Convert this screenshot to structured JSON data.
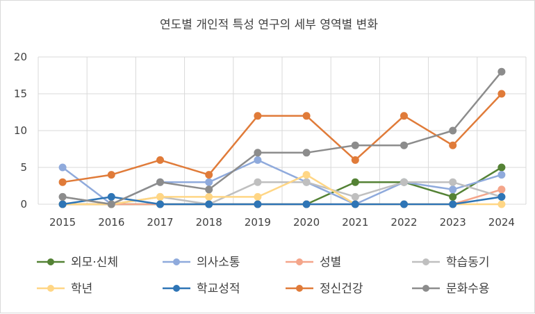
{
  "chart_data": {
    "type": "line",
    "title": "연도별 개인적 특성 연구의 세부 영역별  변화",
    "xlabel": "",
    "ylabel": "",
    "categories": [
      "2015",
      "2016",
      "2017",
      "2018",
      "2019",
      "2020",
      "2021",
      "2022",
      "2023",
      "2024"
    ],
    "ylim": [
      0,
      20
    ],
    "yticks": [
      0,
      5,
      10,
      15,
      20
    ],
    "grid": "both",
    "legend_position": "bottom",
    "series": [
      {
        "name": "외모·신체",
        "color": "#548235",
        "values": [
          0,
          0,
          0,
          0,
          0,
          0,
          3,
          3,
          1,
          5
        ]
      },
      {
        "name": "의사소통",
        "color": "#8faadc",
        "values": [
          5,
          0,
          3,
          3,
          6,
          3,
          0,
          3,
          2,
          4
        ]
      },
      {
        "name": "성별",
        "color": "#f4a58a",
        "values": [
          0,
          0,
          0,
          0,
          0,
          0,
          0,
          0,
          0,
          2
        ]
      },
      {
        "name": "학습동기",
        "color": "#bfbfbf",
        "values": [
          1,
          0,
          1,
          0,
          3,
          3,
          1,
          3,
          3,
          1
        ]
      },
      {
        "name": "학년",
        "color": "#ffd685",
        "values": [
          0,
          0,
          1,
          1,
          1,
          4,
          0,
          0,
          0,
          0
        ]
      },
      {
        "name": "학교성적",
        "color": "#2e75b6",
        "values": [
          0,
          1,
          0,
          0,
          0,
          0,
          0,
          0,
          0,
          1
        ]
      },
      {
        "name": "정신건강",
        "color": "#e07b39",
        "values": [
          3,
          4,
          6,
          4,
          12,
          12,
          6,
          12,
          8,
          15
        ]
      },
      {
        "name": "문화수용",
        "color": "#8c8c8c",
        "values": [
          1,
          0,
          3,
          2,
          7,
          7,
          8,
          8,
          10,
          18
        ]
      }
    ]
  }
}
